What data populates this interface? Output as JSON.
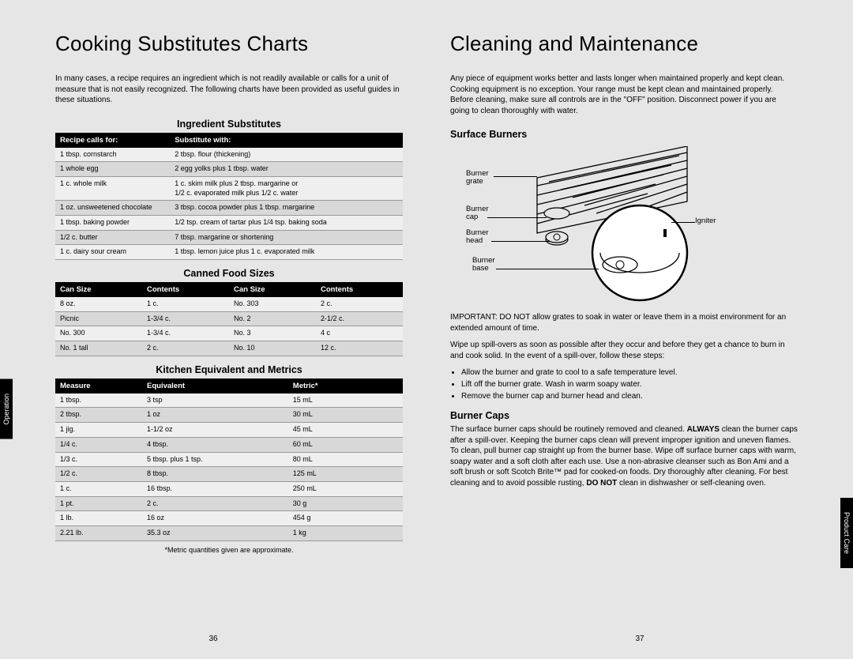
{
  "left": {
    "title": "Cooking Substitutes Charts",
    "intro": "In many cases, a recipe requires an ingredient which is not readily available or calls for a unit of measure that is not easily recognized. The following charts have been provided as useful guides in these situations.",
    "t1": {
      "head": "Ingredient Substitutes",
      "cols": [
        "Recipe calls for:",
        "Substitute with:"
      ],
      "rows": [
        [
          "1 tbsp. cornstarch",
          "2 tbsp. flour (thickening)"
        ],
        [
          "1 whole egg",
          "2 egg yolks plus 1 tbsp. water"
        ],
        [
          "1 c. whole milk",
          "1 c. skim milk plus 2 tbsp. margarine or\n1/2 c. evaporated milk plus 1/2 c. water"
        ],
        [
          "1 oz. unsweetened chocolate",
          "3 tbsp. cocoa powder plus 1 tbsp. margarine"
        ],
        [
          "1 tbsp. baking powder",
          "1/2 tsp. cream of tartar plus 1/4 tsp. baking soda"
        ],
        [
          "1/2 c. butter",
          "7 tbsp. margarine or shortening"
        ],
        [
          "1 c. dairy sour cream",
          "1 tbsp. lemon juice plus 1 c. evaporated milk"
        ]
      ]
    },
    "t2": {
      "head": "Canned Food Sizes",
      "cols": [
        "Can Size",
        "Contents",
        "Can Size",
        "Contents"
      ],
      "rows": [
        [
          "8 oz.",
          "1 c.",
          "No. 303",
          "2 c."
        ],
        [
          "Picnic",
          "1-3/4 c.",
          "No. 2",
          "2-1/2 c."
        ],
        [
          "No. 300",
          "1-3/4 c.",
          "No. 3",
          "4 c"
        ],
        [
          "No. 1 tall",
          "2 c.",
          "No. 10",
          "12 c."
        ]
      ]
    },
    "t3": {
      "head": "Kitchen Equivalent and Metrics",
      "cols": [
        "Measure",
        "Equivalent",
        "Metric*"
      ],
      "rows": [
        [
          "1 tbsp.",
          "3 tsp",
          "15 mL"
        ],
        [
          "2 tbsp.",
          "1 oz",
          "30 mL"
        ],
        [
          "1 jig.",
          "1-1/2 oz",
          "45 mL"
        ],
        [
          "1/4 c.",
          "4 tbsp.",
          "60 mL"
        ],
        [
          "1/3 c.",
          "5 tbsp. plus 1 tsp.",
          "80 mL"
        ],
        [
          "1/2 c.",
          "8 tbsp.",
          "125 mL"
        ],
        [
          "1 c.",
          "16 tbsp.",
          "250 mL"
        ],
        [
          "1 pt.",
          "2 c.",
          "30 g"
        ],
        [
          "1 lb.",
          "16 oz",
          "454 g"
        ],
        [
          "2.21 lb.",
          "35.3 oz",
          "1 kg"
        ]
      ],
      "foot": "*Metric quantities given are approximate."
    },
    "pnum": "36"
  },
  "right": {
    "title": "Cleaning and Maintenance",
    "intro": "Any piece of equipment works better and lasts longer when maintained properly and kept clean. Cooking equipment is no exception. Your range must be kept clean and maintained properly. Before cleaning, make sure all controls are in the \"OFF\" position. Disconnect power if you are going to clean thoroughly with water.",
    "h1": "Surface Burners",
    "labels": {
      "grate": "Burner\ngrate",
      "cap": "Burner\ncap",
      "head": "Burner\nhead",
      "base": "Burner\nbase",
      "igniter": "Igniter"
    },
    "warn": "IMPORTANT: DO NOT allow grates to soak in water or leave them in a moist environment for an extended amount of time.",
    "p1": "Wipe up spill-overs as soon as possible after they occur and before they get a chance to burn in and cook solid. In the event of a spill-over, follow these steps:",
    "bullets": [
      "Allow the burner and grate to cool to a safe temperature level.",
      "Lift off the burner grate. Wash in warm soapy water.",
      "Remove the burner cap and burner head and clean."
    ],
    "h2": "Burner Caps",
    "p2a": "The surface burner caps should be routinely removed and cleaned. ",
    "p2b": "ALWAYS",
    "p2c": " clean the burner caps after a spill-over. Keeping the burner caps clean will prevent improper ignition and uneven flames. To clean, pull burner cap straight up from the burner base. Wipe off surface burner caps with warm, soapy water and a soft cloth after each use. Use a non-abrasive cleanser such as Bon Ami and a soft brush or soft Scotch Brite™ pad for cooked-on foods. Dry thoroughly after cleaning. For best cleaning and to avoid possible rusting, ",
    "p2d": "DO NOT",
    "p2e": " clean in dishwasher or self-cleaning oven.",
    "pnum": "37"
  },
  "tab_left": "Operation",
  "tab_right": "Product Care"
}
